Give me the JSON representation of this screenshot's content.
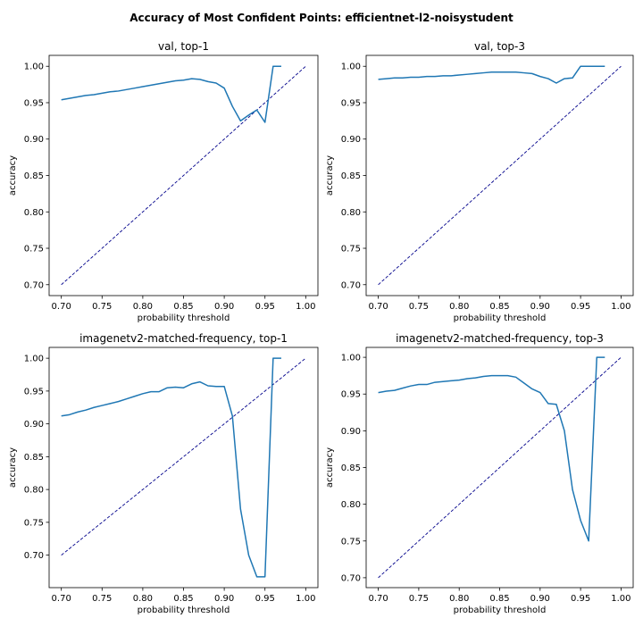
{
  "figure": {
    "suptitle": "Accuracy of Most Confident Points: efficientnet-l2-noisystudent"
  },
  "colors": {
    "series": "#1f77b4",
    "diagonal": "#00008b"
  },
  "chart_data": [
    {
      "type": "line",
      "title": "val, top-1",
      "xlabel": "probability threshold",
      "ylabel": "accuracy",
      "xlim": [
        0.685,
        1.015
      ],
      "ylim": [
        0.685,
        1.015
      ],
      "xticks": [
        0.7,
        0.75,
        0.8,
        0.85,
        0.9,
        0.95,
        1.0
      ],
      "xtick_labels": [
        "0.70",
        "0.75",
        "0.80",
        "0.85",
        "0.90",
        "0.95",
        "1.00"
      ],
      "yticks": [
        0.7,
        0.75,
        0.8,
        0.85,
        0.9,
        0.95,
        1.0
      ],
      "ytick_labels": [
        "0.70",
        "0.75",
        "0.80",
        "0.85",
        "0.90",
        "0.95",
        "1.00"
      ],
      "diagonal": {
        "x": [
          0.7,
          1.0
        ],
        "y": [
          0.7,
          1.0
        ]
      },
      "series": [
        {
          "name": "accuracy",
          "x": [
            0.7,
            0.71,
            0.72,
            0.73,
            0.74,
            0.75,
            0.76,
            0.77,
            0.78,
            0.79,
            0.8,
            0.81,
            0.82,
            0.83,
            0.84,
            0.85,
            0.86,
            0.87,
            0.88,
            0.89,
            0.9,
            0.91,
            0.92,
            0.93,
            0.94,
            0.95,
            0.96,
            0.97
          ],
          "y": [
            0.954,
            0.956,
            0.958,
            0.96,
            0.961,
            0.963,
            0.965,
            0.966,
            0.968,
            0.97,
            0.972,
            0.974,
            0.976,
            0.978,
            0.98,
            0.981,
            0.983,
            0.982,
            0.979,
            0.977,
            0.97,
            0.945,
            0.925,
            0.933,
            0.94,
            0.923,
            1.0,
            1.0
          ]
        }
      ]
    },
    {
      "type": "line",
      "title": "val, top-3",
      "xlabel": "probability threshold",
      "ylabel": "accuracy",
      "xlim": [
        0.685,
        1.015
      ],
      "ylim": [
        0.685,
        1.015
      ],
      "xticks": [
        0.7,
        0.75,
        0.8,
        0.85,
        0.9,
        0.95,
        1.0
      ],
      "xtick_labels": [
        "0.70",
        "0.75",
        "0.80",
        "0.85",
        "0.90",
        "0.95",
        "1.00"
      ],
      "yticks": [
        0.7,
        0.75,
        0.8,
        0.85,
        0.9,
        0.95,
        1.0
      ],
      "ytick_labels": [
        "0.70",
        "0.75",
        "0.80",
        "0.85",
        "0.90",
        "0.95",
        "1.00"
      ],
      "diagonal": {
        "x": [
          0.7,
          1.0
        ],
        "y": [
          0.7,
          1.0
        ]
      },
      "series": [
        {
          "name": "accuracy",
          "x": [
            0.7,
            0.71,
            0.72,
            0.73,
            0.74,
            0.75,
            0.76,
            0.77,
            0.78,
            0.79,
            0.8,
            0.81,
            0.82,
            0.83,
            0.84,
            0.85,
            0.86,
            0.87,
            0.88,
            0.89,
            0.9,
            0.91,
            0.92,
            0.93,
            0.94,
            0.95,
            0.96,
            0.97,
            0.98
          ],
          "y": [
            0.982,
            0.983,
            0.984,
            0.984,
            0.985,
            0.985,
            0.986,
            0.986,
            0.987,
            0.987,
            0.988,
            0.989,
            0.99,
            0.991,
            0.992,
            0.992,
            0.992,
            0.992,
            0.991,
            0.99,
            0.986,
            0.983,
            0.977,
            0.983,
            0.984,
            1.0,
            1.0,
            1.0,
            1.0
          ]
        }
      ]
    },
    {
      "type": "line",
      "title": "imagenetv2-matched-frequency, top-1",
      "xlabel": "probability threshold",
      "ylabel": "accuracy",
      "xlim": [
        0.685,
        1.015
      ],
      "ylim": [
        0.6505,
        1.0165
      ],
      "xticks": [
        0.7,
        0.75,
        0.8,
        0.85,
        0.9,
        0.95,
        1.0
      ],
      "xtick_labels": [
        "0.70",
        "0.75",
        "0.80",
        "0.85",
        "0.90",
        "0.95",
        "1.00"
      ],
      "yticks": [
        0.7,
        0.75,
        0.8,
        0.85,
        0.9,
        0.95,
        1.0
      ],
      "ytick_labels": [
        "0.70",
        "0.75",
        "0.80",
        "0.85",
        "0.90",
        "0.95",
        "1.00"
      ],
      "diagonal": {
        "x": [
          0.7,
          1.0
        ],
        "y": [
          0.7,
          1.0
        ]
      },
      "series": [
        {
          "name": "accuracy",
          "x": [
            0.7,
            0.71,
            0.72,
            0.73,
            0.74,
            0.75,
            0.76,
            0.77,
            0.78,
            0.79,
            0.8,
            0.81,
            0.82,
            0.83,
            0.84,
            0.85,
            0.86,
            0.87,
            0.88,
            0.89,
            0.9,
            0.91,
            0.92,
            0.93,
            0.94,
            0.95,
            0.96,
            0.97
          ],
          "y": [
            0.912,
            0.914,
            0.918,
            0.921,
            0.925,
            0.928,
            0.931,
            0.934,
            0.938,
            0.942,
            0.946,
            0.949,
            0.949,
            0.955,
            0.956,
            0.955,
            0.961,
            0.964,
            0.958,
            0.957,
            0.957,
            0.912,
            0.77,
            0.7,
            0.667,
            0.667,
            1.0,
            1.0
          ]
        }
      ]
    },
    {
      "type": "line",
      "title": "imagenetv2-matched-frequency, top-3",
      "xlabel": "probability threshold",
      "ylabel": "accuracy",
      "xlim": [
        0.685,
        1.015
      ],
      "ylim": [
        0.6865,
        1.0135
      ],
      "xticks": [
        0.7,
        0.75,
        0.8,
        0.85,
        0.9,
        0.95,
        1.0
      ],
      "xtick_labels": [
        "0.70",
        "0.75",
        "0.80",
        "0.85",
        "0.90",
        "0.95",
        "1.00"
      ],
      "yticks": [
        0.7,
        0.75,
        0.8,
        0.85,
        0.9,
        0.95,
        1.0
      ],
      "ytick_labels": [
        "0.70",
        "0.75",
        "0.80",
        "0.85",
        "0.90",
        "0.95",
        "1.00"
      ],
      "diagonal": {
        "x": [
          0.7,
          1.0
        ],
        "y": [
          0.7,
          1.0
        ]
      },
      "series": [
        {
          "name": "accuracy",
          "x": [
            0.7,
            0.71,
            0.72,
            0.73,
            0.74,
            0.75,
            0.76,
            0.77,
            0.78,
            0.79,
            0.8,
            0.81,
            0.82,
            0.83,
            0.84,
            0.85,
            0.86,
            0.87,
            0.88,
            0.89,
            0.9,
            0.91,
            0.92,
            0.93,
            0.94,
            0.95,
            0.96,
            0.97,
            0.98
          ],
          "y": [
            0.952,
            0.954,
            0.955,
            0.958,
            0.961,
            0.963,
            0.963,
            0.966,
            0.967,
            0.968,
            0.969,
            0.971,
            0.972,
            0.974,
            0.975,
            0.975,
            0.975,
            0.973,
            0.965,
            0.957,
            0.952,
            0.937,
            0.936,
            0.9,
            0.82,
            0.778,
            0.75,
            1.0,
            1.0
          ]
        }
      ]
    }
  ]
}
